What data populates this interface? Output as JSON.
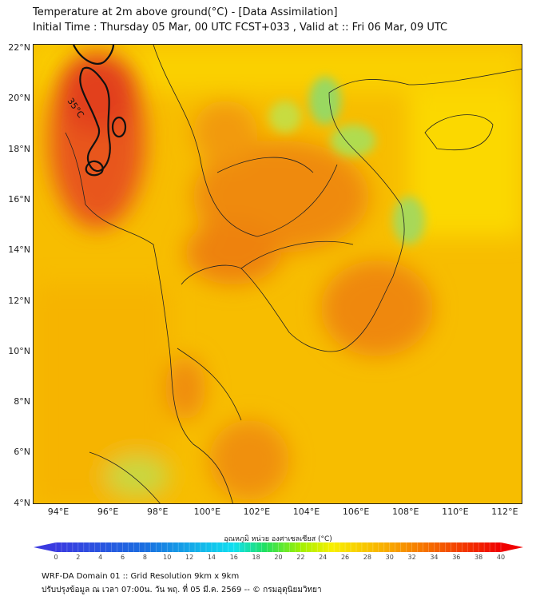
{
  "header": {
    "title": "Temperature at 2m above ground(°C) - [Data Assimilation]",
    "subtitle": "Initial Time : Thursday 05 Mar, 00 UTC FCST+033 , Valid at :: Fri 06 Mar, 09 UTC"
  },
  "map": {
    "lat_ticks": [
      "22°N",
      "20°N",
      "18°N",
      "16°N",
      "14°N",
      "12°N",
      "10°N",
      "8°N",
      "6°N",
      "4°N"
    ],
    "lon_ticks": [
      "94°E",
      "96°E",
      "98°E",
      "100°E",
      "102°E",
      "104°E",
      "106°E",
      "108°E",
      "110°E",
      "112°E"
    ],
    "contour_label": "35°C",
    "colors": {
      "base": "#f7bd00",
      "hot": "#e4461c",
      "warm": "#f08a10",
      "cool": "#8fd46a"
    }
  },
  "colorbar": {
    "label": "อุณหภูมิ หน่วย องศาเซลเซียส (°C)",
    "ticks": [
      "0",
      "2",
      "4",
      "6",
      "8",
      "10",
      "12",
      "14",
      "16",
      "18",
      "20",
      "22",
      "24",
      "26",
      "28",
      "30",
      "32",
      "34",
      "36",
      "38",
      "40"
    ],
    "range": [
      0,
      40
    ]
  },
  "footer": {
    "line1": "WRF-DA Domain 01 :: Grid Resolution 9km x 9km",
    "line2": "ปรับปรุงข้อมูล ณ เวลา 07:00น. วัน พฤ. ที่ 05 มี.ค. 2569 -- © กรมอุตุนิยมวิทยา"
  }
}
